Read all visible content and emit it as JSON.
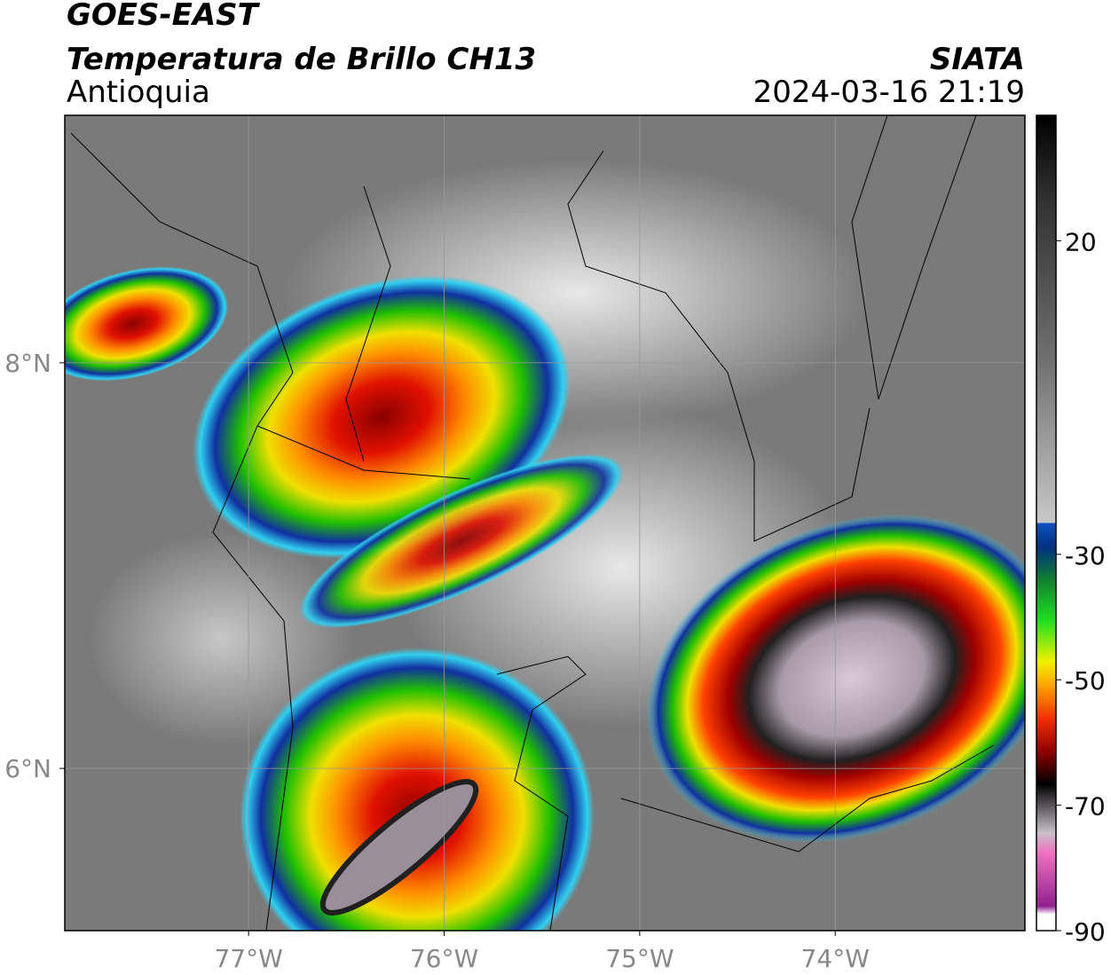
{
  "header": {
    "title": "GOES-EAST",
    "subtitle": "Temperatura de Brillo CH13",
    "region": "Antioquia",
    "source": "SIATA",
    "timestamp": "2024-03-16 21:19"
  },
  "map": {
    "xlim": [
      -77.94,
      -73.03
    ],
    "ylim": [
      5.2,
      9.22
    ],
    "xticks": [
      {
        "value": -77,
        "label": "77°W"
      },
      {
        "value": -76,
        "label": "76°W"
      },
      {
        "value": -75,
        "label": "75°W"
      },
      {
        "value": -74,
        "label": "74°W"
      }
    ],
    "yticks": [
      {
        "value": 8,
        "label": "8°N"
      },
      {
        "value": 6,
        "label": "6°N"
      }
    ],
    "colorbar": {
      "lim": [
        -90,
        40
      ],
      "ticks": [
        20,
        -30,
        -50,
        -70,
        -90
      ]
    }
  }
}
